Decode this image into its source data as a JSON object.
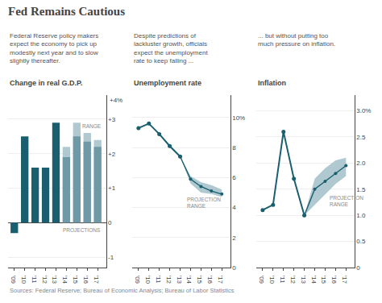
{
  "title": "Fed Remains Cautious",
  "source": "Sources: Federal Reserve; Bureau of Economic Analysis; Bureau of Labor Statistics",
  "chart_data": [
    {
      "type": "bar",
      "title": "Change in real G.D.P.",
      "subtitle": "Federal Reserve policy makers\nexpect the economy to pick up\nmodestly next year and to slow\nslightly thereafter.",
      "series": [
        {
          "type": "bar",
          "x": [
            2009,
            2010,
            2011,
            2012,
            2013
          ],
          "values": [
            -0.3,
            2.5,
            1.6,
            1.6,
            2.9
          ],
          "color": "#1a5f70"
        },
        {
          "type": "bar",
          "x": [
            2014,
            2015,
            2016,
            2017
          ],
          "values": [
            2.2,
            2.9,
            2.6,
            2.4
          ],
          "color": "#b0c8d0"
        },
        {
          "type": "bar",
          "x": [
            2014,
            2015,
            2016,
            2017
          ],
          "values": [
            1.9,
            2.5,
            2.35,
            2.2
          ],
          "color": "#7099a8"
        }
      ],
      "xlim": [
        2008.4,
        2017.8
      ],
      "xticks": [
        {
          "value": 2009,
          "label": "'09"
        },
        {
          "value": 2010,
          "label": "'10"
        },
        {
          "value": 2011,
          "label": "'11"
        },
        {
          "value": 2012,
          "label": "'12"
        },
        {
          "value": 2013,
          "label": "'13"
        },
        {
          "value": 2014,
          "label": "'14"
        },
        {
          "value": 2015,
          "label": "'15"
        },
        {
          "value": 2016,
          "label": "'16"
        },
        {
          "value": 2017,
          "label": "'17"
        }
      ],
      "ylim": [
        -1.3,
        3.7
      ],
      "yticks": [
        -1,
        0,
        {
          "value": 1,
          "label": "+1"
        },
        {
          "value": 2,
          "label": "+2"
        },
        {
          "value": 3,
          "label": "+3"
        }
      ],
      "grid": "y",
      "annotations": [
        {
          "text": "RANGE",
          "x": 2016.45,
          "y": 2.92
        },
        {
          "text": "PROJECTIONS",
          "x": 2015.5,
          "y": -0.08
        },
        {
          "text": "+4%",
          "x": 2017.8,
          "y": 3.7
        }
      ]
    },
    {
      "type": "line",
      "title": "Unemployment rate",
      "subtitle": "Despite predictions of\nlackluster growth, officials\nexpect the unemployment\nrate to keep falling ...",
      "series": [
        {
          "type": "range",
          "x": [
            2013,
            2014,
            2015,
            2016,
            2017
          ],
          "low": [
            7.4,
            5.6,
            5.0,
            4.9,
            4.7
          ],
          "high": [
            7.4,
            6.1,
            5.7,
            5.5,
            5.2
          ],
          "color": "#b0c8d0"
        },
        {
          "type": "line",
          "x": [
            2009,
            2010,
            2011,
            2012,
            2013
          ],
          "values": [
            9.3,
            9.6,
            8.9,
            8.1,
            7.4
          ],
          "color": "#1a5f70",
          "marker": "circle"
        },
        {
          "type": "line",
          "x": [
            2013,
            2014,
            2015,
            2016,
            2017
          ],
          "values": [
            7.4,
            5.9,
            5.4,
            5.1,
            4.9
          ],
          "color": "#1a5f70",
          "marker": "circle"
        }
      ],
      "xlim": [
        2008.4,
        2017.8
      ],
      "xticks": [
        {
          "value": 2009,
          "label": "'09"
        },
        {
          "value": 2010,
          "label": "'10"
        },
        {
          "value": 2011,
          "label": "'11"
        },
        {
          "value": 2012,
          "label": "'12"
        },
        {
          "value": 2013,
          "label": "'13"
        },
        {
          "value": 2014,
          "label": "'14"
        },
        {
          "value": 2015,
          "label": "'15"
        },
        {
          "value": 2016,
          "label": "'16"
        },
        {
          "value": 2017,
          "label": "'17"
        }
      ],
      "ylim": [
        0,
        11.5
      ],
      "yticks": [
        0,
        2,
        4,
        6,
        8,
        {
          "value": 10,
          "label": "10%"
        }
      ],
      "grid": "y",
      "annotations": [
        {
          "text": "PROJECTION\nRANGE",
          "x": 2013.5,
          "y": 5.05
        }
      ]
    },
    {
      "type": "line",
      "title": "Inflation",
      "subtitle": "... but without putting too\nmuch pressure on inflation.",
      "series": [
        {
          "type": "range",
          "x": [
            2013,
            2014,
            2015,
            2016,
            2017
          ],
          "low": [
            1.0,
            1.2,
            1.4,
            1.6,
            1.75
          ],
          "high": [
            1.0,
            1.7,
            1.9,
            2.05,
            2.1
          ],
          "color": "#b0c8d0"
        },
        {
          "type": "line",
          "x": [
            2009,
            2010,
            2011,
            2012,
            2013
          ],
          "values": [
            1.1,
            1.2,
            2.6,
            1.7,
            1.0
          ],
          "color": "#1a5f70",
          "marker": "circle"
        },
        {
          "type": "line",
          "x": [
            2013,
            2014,
            2015,
            2016,
            2017
          ],
          "values": [
            1.0,
            1.5,
            1.65,
            1.8,
            1.95
          ],
          "color": "#1a5f70",
          "marker": "circle"
        }
      ],
      "xlim": [
        2008.4,
        2017.8
      ],
      "xticks": [
        {
          "value": 2009,
          "label": "'09"
        },
        {
          "value": 2010,
          "label": "'10"
        },
        {
          "value": 2011,
          "label": "'11"
        },
        {
          "value": 2012,
          "label": "'12"
        },
        {
          "value": 2013,
          "label": "'13"
        },
        {
          "value": 2014,
          "label": "'14"
        },
        {
          "value": 2015,
          "label": "'15"
        },
        {
          "value": 2016,
          "label": "'16"
        },
        {
          "value": 2017,
          "label": "'17"
        }
      ],
      "ylim": [
        0,
        3.3
      ],
      "yticks": [
        0,
        0.5,
        {
          "value": 1,
          "label": "1.0"
        },
        1.5,
        {
          "value": 2,
          "label": "2.0"
        },
        2.5,
        {
          "value": 3,
          "label": "3.0%"
        }
      ],
      "grid": "y",
      "annotations": [
        {
          "text": "PROJECTION\nRANGE",
          "x": 2015.3,
          "y": 1.42
        }
      ]
    }
  ]
}
